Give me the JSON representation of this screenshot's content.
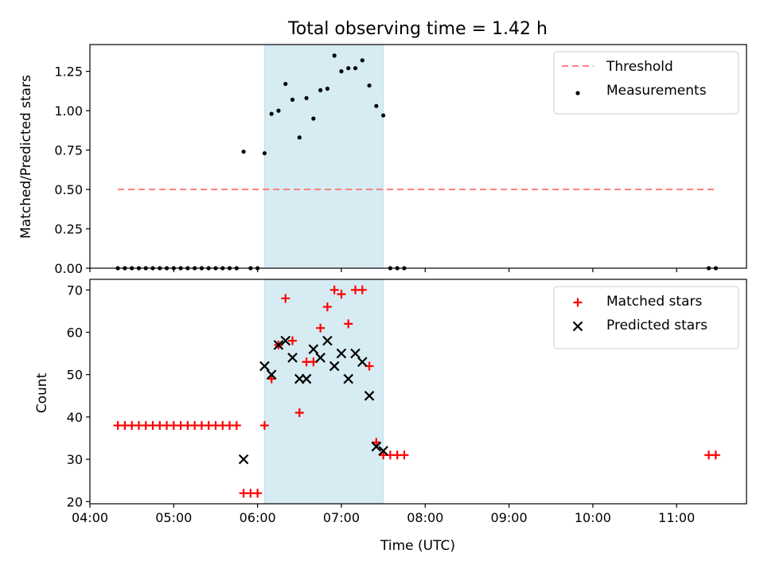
{
  "chart_data": [
    {
      "type": "scatter",
      "title": "Total observing time = 1.42 h",
      "xlabel": "",
      "ylabel": "Matched/Predicted stars",
      "xlim": [
        "04:00",
        "11:50"
      ],
      "ylim": [
        0,
        1.42
      ],
      "yticks": [
        "0.00",
        "0.25",
        "0.50",
        "0.75",
        "1.00",
        "1.25"
      ],
      "shaded_span": [
        "06:05",
        "07:30"
      ],
      "legend_position": "top-right",
      "threshold": {
        "name": "Threshold",
        "style": "dashed",
        "color": "#ff7f7f",
        "y": 0.5,
        "x": [
          "04:20",
          "11:28"
        ]
      },
      "series": [
        {
          "name": "Measurements",
          "marker": "dot",
          "color": "#000000",
          "points": [
            [
              "04:20",
              0
            ],
            [
              "04:25",
              0
            ],
            [
              "04:30",
              0
            ],
            [
              "04:35",
              0
            ],
            [
              "04:40",
              0
            ],
            [
              "04:45",
              0
            ],
            [
              "04:50",
              0
            ],
            [
              "04:55",
              0
            ],
            [
              "05:00",
              0
            ],
            [
              "05:05",
              0
            ],
            [
              "05:10",
              0
            ],
            [
              "05:15",
              0
            ],
            [
              "05:20",
              0
            ],
            [
              "05:25",
              0
            ],
            [
              "05:30",
              0
            ],
            [
              "05:35",
              0
            ],
            [
              "05:40",
              0
            ],
            [
              "05:45",
              0
            ],
            [
              "05:50",
              0.74
            ],
            [
              "05:55",
              0
            ],
            [
              "06:00",
              0
            ],
            [
              "06:05",
              0.73
            ],
            [
              "06:10",
              0.98
            ],
            [
              "06:15",
              1.0
            ],
            [
              "06:20",
              1.17
            ],
            [
              "06:25",
              1.07
            ],
            [
              "06:30",
              0.83
            ],
            [
              "06:35",
              1.08
            ],
            [
              "06:40",
              0.95
            ],
            [
              "06:45",
              1.13
            ],
            [
              "06:50",
              1.14
            ],
            [
              "06:55",
              1.35
            ],
            [
              "07:00",
              1.25
            ],
            [
              "07:05",
              1.27
            ],
            [
              "07:10",
              1.27
            ],
            [
              "07:15",
              1.32
            ],
            [
              "07:20",
              1.16
            ],
            [
              "07:25",
              1.03
            ],
            [
              "07:30",
              0.97
            ],
            [
              "07:35",
              0
            ],
            [
              "07:40",
              0
            ],
            [
              "07:45",
              0
            ],
            [
              "11:23",
              0
            ],
            [
              "11:28",
              0
            ]
          ]
        }
      ]
    },
    {
      "type": "scatter",
      "title": "",
      "xlabel": "Time (UTC)",
      "ylabel": "Count",
      "xlim": [
        "04:00",
        "11:50"
      ],
      "xticks": [
        "04:00",
        "05:00",
        "06:00",
        "07:00",
        "08:00",
        "09:00",
        "10:00",
        "11:00"
      ],
      "ylim": [
        19.5,
        72.5
      ],
      "yticks": [
        "20",
        "30",
        "40",
        "50",
        "60",
        "70"
      ],
      "shaded_span": [
        "06:05",
        "07:30"
      ],
      "legend_position": "top-right",
      "series": [
        {
          "name": "Matched stars",
          "marker": "plus",
          "color": "#ff0000",
          "points": [
            [
              "04:20",
              38
            ],
            [
              "04:25",
              38
            ],
            [
              "04:30",
              38
            ],
            [
              "04:35",
              38
            ],
            [
              "04:40",
              38
            ],
            [
              "04:45",
              38
            ],
            [
              "04:50",
              38
            ],
            [
              "04:55",
              38
            ],
            [
              "05:00",
              38
            ],
            [
              "05:05",
              38
            ],
            [
              "05:10",
              38
            ],
            [
              "05:15",
              38
            ],
            [
              "05:20",
              38
            ],
            [
              "05:25",
              38
            ],
            [
              "05:30",
              38
            ],
            [
              "05:35",
              38
            ],
            [
              "05:40",
              38
            ],
            [
              "05:45",
              38
            ],
            [
              "05:50",
              22
            ],
            [
              "05:55",
              22
            ],
            [
              "06:00",
              22
            ],
            [
              "06:05",
              38
            ],
            [
              "06:10",
              49
            ],
            [
              "06:15",
              57
            ],
            [
              "06:20",
              68
            ],
            [
              "06:25",
              58
            ],
            [
              "06:30",
              41
            ],
            [
              "06:35",
              53
            ],
            [
              "06:40",
              53
            ],
            [
              "06:45",
              61
            ],
            [
              "06:50",
              66
            ],
            [
              "06:55",
              70
            ],
            [
              "07:00",
              69
            ],
            [
              "07:05",
              62
            ],
            [
              "07:10",
              70
            ],
            [
              "07:15",
              70
            ],
            [
              "07:20",
              52
            ],
            [
              "07:25",
              34
            ],
            [
              "07:30",
              31
            ],
            [
              "07:35",
              31
            ],
            [
              "07:40",
              31
            ],
            [
              "07:45",
              31
            ],
            [
              "11:23",
              31
            ],
            [
              "11:28",
              31
            ]
          ]
        },
        {
          "name": "Predicted stars",
          "marker": "x",
          "color": "#000000",
          "points": [
            [
              "05:50",
              30
            ],
            [
              "06:05",
              52
            ],
            [
              "06:10",
              50
            ],
            [
              "06:15",
              57
            ],
            [
              "06:20",
              58
            ],
            [
              "06:25",
              54
            ],
            [
              "06:30",
              49
            ],
            [
              "06:35",
              49
            ],
            [
              "06:40",
              56
            ],
            [
              "06:45",
              54
            ],
            [
              "06:50",
              58
            ],
            [
              "06:55",
              52
            ],
            [
              "07:00",
              55
            ],
            [
              "07:05",
              49
            ],
            [
              "07:10",
              55
            ],
            [
              "07:15",
              53
            ],
            [
              "07:20",
              45
            ],
            [
              "07:25",
              33
            ],
            [
              "07:30",
              32
            ]
          ]
        }
      ]
    }
  ]
}
